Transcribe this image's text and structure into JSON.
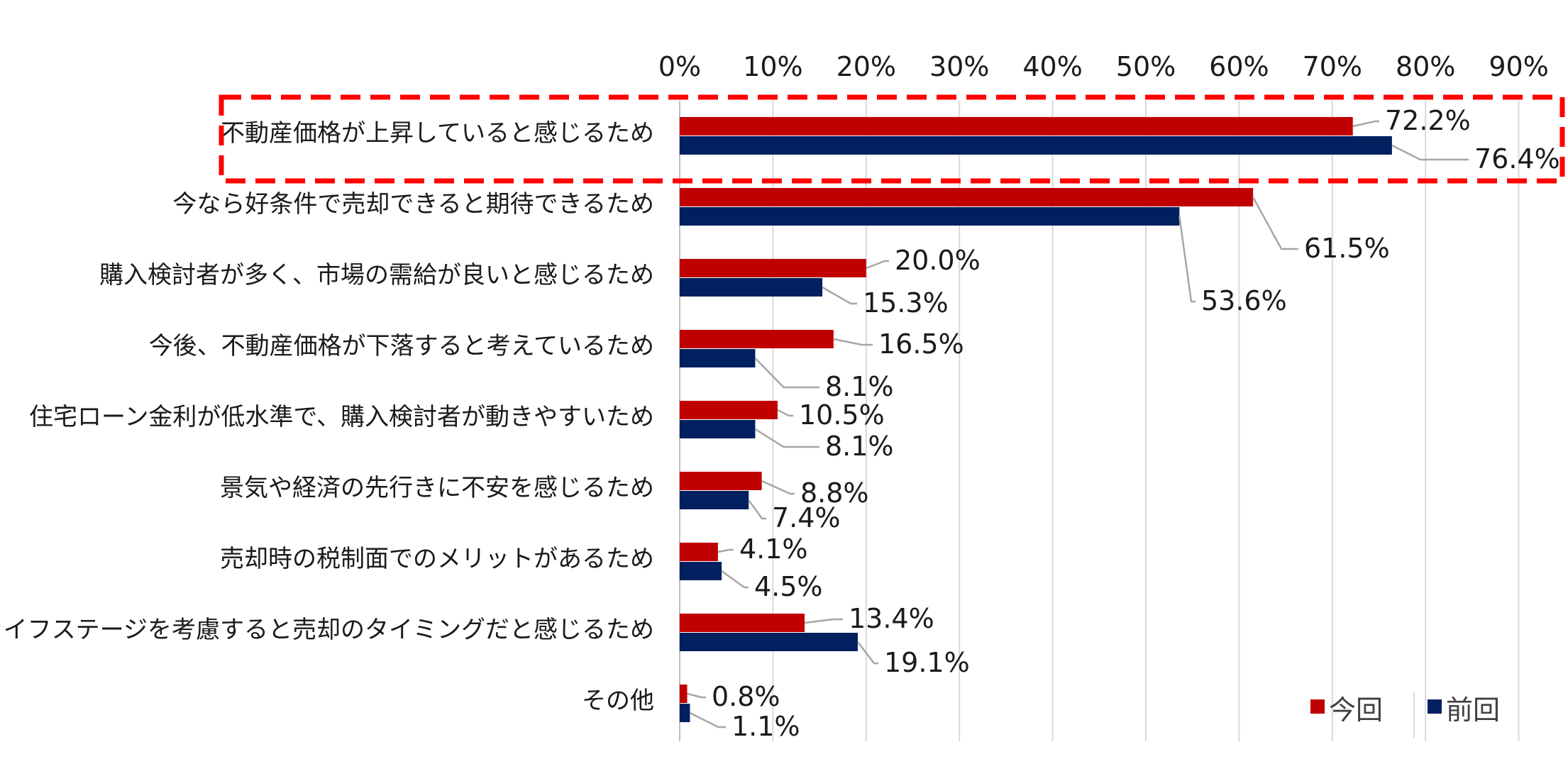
{
  "chart_data": {
    "type": "bar",
    "orientation": "horizontal",
    "categories": [
      "不動産価格が上昇していると感じるため",
      "今なら好条件で売却できると期待できるため",
      "購入検討者が多く、市場の需給が良いと感じるため",
      "今後、不動産価格が下落すると考えているため",
      "住宅ローン金利が低水準で、購入検討者が動きやすいため",
      "景気や経済の先行きに不安を感じるため",
      "売却時の税制面でのメリットがあるため",
      "自身のライフステージを考慮すると売却のタイミングだと感じるため",
      "その他"
    ],
    "series": [
      {
        "name": "今回",
        "color": "#c00000",
        "values": [
          72.2,
          61.5,
          20.0,
          16.5,
          10.5,
          8.8,
          4.1,
          13.4,
          0.8
        ],
        "labels": [
          "72.2%",
          "61.5%",
          "20.0%",
          "16.5%",
          "10.5%",
          "8.8%",
          "4.1%",
          "13.4%",
          "0.8%"
        ]
      },
      {
        "name": "前回",
        "color": "#002060",
        "values": [
          76.4,
          53.6,
          15.3,
          8.1,
          8.1,
          7.4,
          4.5,
          19.1,
          1.1
        ],
        "labels": [
          "76.4%",
          "53.6%",
          "15.3%",
          "8.1%",
          "8.1%",
          "7.4%",
          "4.5%",
          "19.1%",
          "1.1%"
        ]
      }
    ],
    "x_ticks": [
      "0%",
      "10%",
      "20%",
      "30%",
      "40%",
      "50%",
      "60%",
      "70%",
      "80%",
      "90%"
    ],
    "xlim": [
      0,
      90
    ],
    "grid": true,
    "legend_position": "bottom-right",
    "highlight_category_index": 0,
    "highlight_color": "#ff0000",
    "title": "",
    "xlabel": "",
    "ylabel": ""
  }
}
